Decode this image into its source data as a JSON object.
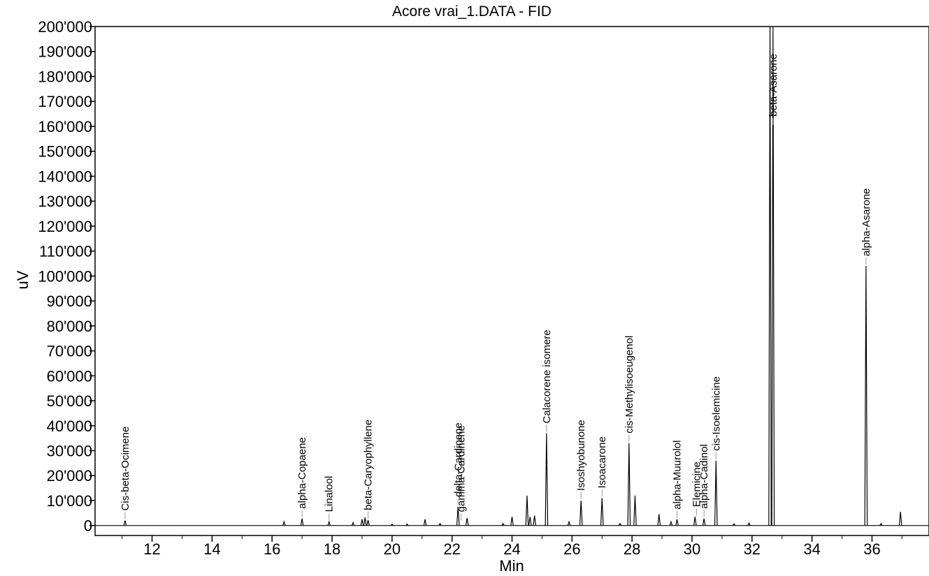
{
  "chart_data": {
    "type": "line",
    "title": "Acore vrai_1.DATA - FID",
    "xlabel": "Min",
    "ylabel": "uV",
    "xlim": [
      10.1,
      37.9
    ],
    "ylim": [
      -4000,
      200000
    ],
    "x_ticks": [
      12,
      14,
      16,
      18,
      20,
      22,
      24,
      26,
      28,
      30,
      32,
      34,
      36
    ],
    "x_tick_labels": [
      "12",
      "14",
      "16",
      "18",
      "20",
      "22",
      "24",
      "26",
      "28",
      "30",
      "32",
      "34",
      "36"
    ],
    "y_ticks": [
      0,
      10000,
      20000,
      30000,
      40000,
      50000,
      60000,
      70000,
      80000,
      90000,
      100000,
      110000,
      120000,
      130000,
      140000,
      150000,
      160000,
      170000,
      180000,
      190000,
      200000
    ],
    "y_tick_labels": [
      "0",
      "10'000",
      "20'000",
      "30'000",
      "40'000",
      "50'000",
      "60'000",
      "70'000",
      "80'000",
      "90'000",
      "100'000",
      "110'000",
      "120'000",
      "130'000",
      "140'000",
      "150'000",
      "160'000",
      "170'000",
      "180'000",
      "190'000",
      "200'000"
    ],
    "grid": false,
    "baseline": 0,
    "peaks": [
      {
        "x": 11.1,
        "y": 2000
      },
      {
        "x": 16.4,
        "y": 1500
      },
      {
        "x": 17.0,
        "y": 2800
      },
      {
        "x": 17.9,
        "y": 1500
      },
      {
        "x": 18.7,
        "y": 1200
      },
      {
        "x": 19.0,
        "y": 2500
      },
      {
        "x": 19.1,
        "y": 3200
      },
      {
        "x": 19.2,
        "y": 2200
      },
      {
        "x": 20.0,
        "y": 500
      },
      {
        "x": 20.5,
        "y": 600
      },
      {
        "x": 21.1,
        "y": 2500
      },
      {
        "x": 21.6,
        "y": 800
      },
      {
        "x": 22.2,
        "y": 7500
      },
      {
        "x": 22.5,
        "y": 3000
      },
      {
        "x": 23.7,
        "y": 800
      },
      {
        "x": 24.0,
        "y": 3500
      },
      {
        "x": 24.5,
        "y": 12000
      },
      {
        "x": 24.6,
        "y": 3500
      },
      {
        "x": 24.75,
        "y": 4000
      },
      {
        "x": 25.15,
        "y": 37000
      },
      {
        "x": 25.9,
        "y": 1500
      },
      {
        "x": 26.3,
        "y": 10000
      },
      {
        "x": 27.0,
        "y": 11000
      },
      {
        "x": 27.6,
        "y": 800
      },
      {
        "x": 27.9,
        "y": 33000
      },
      {
        "x": 28.1,
        "y": 12000
      },
      {
        "x": 28.9,
        "y": 4500
      },
      {
        "x": 29.3,
        "y": 1500
      },
      {
        "x": 29.5,
        "y": 2500
      },
      {
        "x": 30.1,
        "y": 3500
      },
      {
        "x": 30.4,
        "y": 2800
      },
      {
        "x": 30.8,
        "y": 26000
      },
      {
        "x": 31.4,
        "y": 700
      },
      {
        "x": 31.9,
        "y": 1000
      },
      {
        "x": 32.6,
        "y": 205000
      },
      {
        "x": 32.7,
        "y": 205000
      },
      {
        "x": 35.8,
        "y": 104000
      },
      {
        "x": 36.3,
        "y": 800
      },
      {
        "x": 36.95,
        "y": 5500
      }
    ],
    "annotations": [
      {
        "text": "Cis-beta-Ocimene",
        "x": 11.1,
        "y": 2000
      },
      {
        "text": "alpha-Copaene",
        "x": 17.0,
        "y": 2800
      },
      {
        "text": "Linalool",
        "x": 17.9,
        "y": 1500
      },
      {
        "text": "beta-Caryophyllene",
        "x": 19.2,
        "y": 2200
      },
      {
        "text": "delta-Cardinene",
        "x": 22.2,
        "y": 7500
      },
      {
        "text": "gamma-Cardinene",
        "x": 22.3,
        "y": 1500
      },
      {
        "text": "Calacorene isomere",
        "x": 25.15,
        "y": 37000
      },
      {
        "text": "Isoshyobunone",
        "x": 26.3,
        "y": 10000
      },
      {
        "text": "Isoacarone",
        "x": 27.0,
        "y": 11000
      },
      {
        "text": "cis-Methylisoeugenol",
        "x": 27.9,
        "y": 33000
      },
      {
        "text": "alpha-Muurolol",
        "x": 29.5,
        "y": 2500
      },
      {
        "text": "Elemicine",
        "x": 30.15,
        "y": 3500
      },
      {
        "text": "alpha-Cadinol",
        "x": 30.4,
        "y": 2800
      },
      {
        "text": "cis-Isoelemicine",
        "x": 30.8,
        "y": 26000
      },
      {
        "text": "beta-Asarone",
        "x": 32.7,
        "y": 160000
      },
      {
        "text": "alpha-Asarone",
        "x": 35.8,
        "y": 104000
      }
    ]
  }
}
